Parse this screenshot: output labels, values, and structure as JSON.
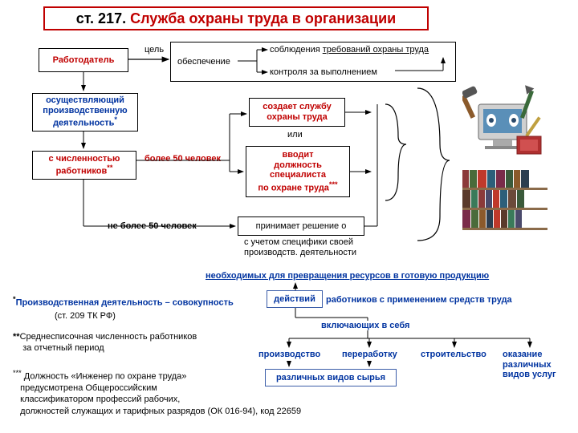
{
  "title": {
    "prefix": "ст. 217. ",
    "main": "Служба охраны труда в организации",
    "prefix_color": "#000000",
    "main_color": "#c00000",
    "fontsize": 18,
    "fontweight": "bold",
    "border_color": "#c00000",
    "bg": "#ffffff"
  },
  "employer": {
    "label": "Работодатель",
    "color": "#c00000",
    "fontsize": 11,
    "fontweight": "bold"
  },
  "goal_label": {
    "text": "цель",
    "fontsize": 11
  },
  "ensure": {
    "text": "обеспечение",
    "fontsize": 11
  },
  "req1": {
    "pre": "соблюдения ",
    "u": "требований охраны труда",
    "fontsize": 11
  },
  "req2": {
    "text": "контроля за выполнением",
    "fontsize": 11
  },
  "activity": {
    "l1": "осуществляющий",
    "l2": "производственную",
    "l3_pre": "деятельность",
    "l3_sup": "*",
    "color": "#0033a0",
    "fontsize": 11,
    "fontweight": "bold"
  },
  "headcount": {
    "l1": "с численностью",
    "l2_pre": "работников",
    "l2_sup": "**",
    "color": "#c00000",
    "fontsize": 11,
    "fontweight": "bold"
  },
  "more50": {
    "text": "более 50 человек",
    "color": "#c00000",
    "fontsize": 11,
    "fontweight": "bold"
  },
  "less50": {
    "text": "не более 50 человек",
    "color": "#000000",
    "fontsize": 11,
    "fontweight": "bold"
  },
  "creates": {
    "l1": "создает службу",
    "l2": "охраны труда",
    "color": "#c00000",
    "fontsize": 11,
    "fontweight": "bold"
  },
  "or_label": {
    "text": "или",
    "fontsize": 11
  },
  "introduces": {
    "l1": "вводит",
    "l2": "должность",
    "l3": "специалиста",
    "l4_pre": "по охране труда",
    "l4_sup": "***",
    "color": "#c00000",
    "fontsize": 11,
    "fontweight": "bold"
  },
  "decides": {
    "text": "принимает решение  о",
    "fontsize": 11
  },
  "specifics": {
    "l1": "с учетом специфики своей",
    "l2": "производств. деятельности",
    "fontsize": 11
  },
  "necessary": {
    "text": "необходимых для превращения ресурсов в готовую продукцию",
    "color": "#0033a0",
    "fontsize": 11,
    "fontweight": "bold",
    "underline": true
  },
  "def_star": {
    "sup": "*",
    "pre": "Производственная  деятельность – совокупность ",
    "box": "действий",
    "post": " работников с применением средств труда",
    "color": "#0033a0",
    "fontsize": 11,
    "fontweight": "bold"
  },
  "ref": {
    "text": "(ст. 209 ТК РФ)",
    "fontsize": 11
  },
  "including": {
    "text": "включающих в себя",
    "color": "#0033a0",
    "fontsize": 11,
    "fontweight": "bold"
  },
  "cat1": {
    "text": "производство",
    "color": "#0033a0",
    "fontsize": 11,
    "fontweight": "bold"
  },
  "cat2": {
    "text": "переработку",
    "color": "#0033a0",
    "fontsize": 11,
    "fontweight": "bold"
  },
  "cat3": {
    "text": "строительство",
    "color": "#0033a0",
    "fontsize": 11,
    "fontweight": "bold"
  },
  "cat4": {
    "l1": "оказание",
    "l2": "различных",
    "l3": "видов услуг",
    "color": "#0033a0",
    "fontsize": 11,
    "fontweight": "bold"
  },
  "raw": {
    "text": "различных видов сырья",
    "color": "#0033a0",
    "fontsize": 11,
    "fontweight": "bold"
  },
  "fn2": {
    "pre": "**",
    "l1": "Среднесписочная численность работников",
    "l2": "за отчетный период",
    "fontsize": 11
  },
  "fn3": {
    "pre": "***",
    "l1": "Должность «Инженер по охране труда»",
    "l2": "предусмотрена Общероссийским",
    "l3": "классификатором профессий рабочих,",
    "l4": "должностей служащих и тарифных разрядов (ОК 016-94), код 22659",
    "fontsize": 11
  },
  "colors": {
    "black": "#000000",
    "red": "#c00000",
    "blue": "#0033a0",
    "box_blue": "#3b5da8",
    "arrow": "#000000"
  },
  "books": {
    "row1": [
      "#8b3a3a",
      "#4a6b3a",
      "#c0392b",
      "#2c5f7a",
      "#7a2c4a",
      "#3a5a3a",
      "#8b5a2b",
      "#2c3e50"
    ],
    "row2": [
      "#5a3a2c",
      "#3a7a5a",
      "#8b3a3a",
      "#4a4a6b",
      "#c0392b",
      "#2c5f7a",
      "#6b4a3a",
      "#3a5a3a"
    ],
    "row3": [
      "#7a2c4a",
      "#4a6b3a",
      "#8b5a2b",
      "#2c3e50",
      "#c0392b",
      "#5a3a2c",
      "#3a7a5a",
      "#4a4a6b"
    ]
  }
}
